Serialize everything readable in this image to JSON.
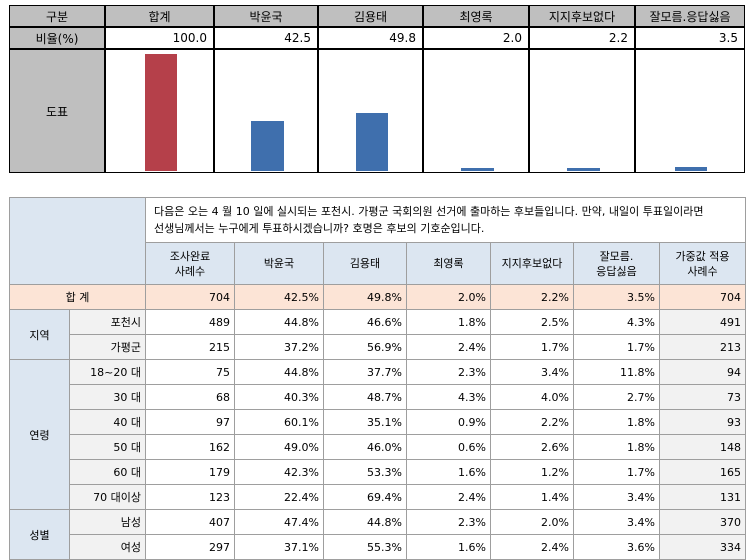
{
  "summary": {
    "corner_label": "구분",
    "row_label": "비율(%)",
    "chart_label": "도표",
    "columns": [
      "합계",
      "박윤국",
      "김용태",
      "최영록",
      "지지후보없다",
      "잘모름.응답싫음"
    ],
    "values": [
      100.0,
      42.5,
      49.8,
      2.0,
      2.2,
      3.5
    ],
    "value_text": [
      "100.0",
      "42.5",
      "49.8",
      "2.0",
      "2.2",
      "3.5"
    ],
    "colors": {
      "total": "#b5404a",
      "candidate": "#3f6fad"
    }
  },
  "chart_data": {
    "type": "bar",
    "categories": [
      "합계",
      "박윤국",
      "김용태",
      "최영록",
      "지지후보없다",
      "잘모름.응답싫음"
    ],
    "values": [
      100.0,
      42.5,
      49.8,
      2.0,
      2.2,
      3.5
    ],
    "ylabel": "비율(%)",
    "ylim": [
      0,
      100
    ]
  },
  "table": {
    "question_line1": "다음은 오는 4 월 10 일에 실시되는 포천시. 가평군 국회의원 선거에 출마하는 후보들입니다. 만약, 내일이 투표일이라면",
    "question_line2": "선생님께서는 누구에게 투표하시겠습니까? 호명은 후보의 기호순입니다.",
    "headers": {
      "sample": [
        "조사완료",
        "사례수"
      ],
      "c1": "박윤국",
      "c2": "김용태",
      "c3": "최영록",
      "c4": "지지후보없다",
      "c5": [
        "잘모름.",
        "응답싫음"
      ],
      "weighted": [
        "가중값 적용",
        "사례수"
      ]
    },
    "total": {
      "label": "합 계",
      "n": "704",
      "c1": "42.5%",
      "c2": "49.8%",
      "c3": "2.0%",
      "c4": "2.2%",
      "c5": "3.5%",
      "w": "704"
    },
    "groups": [
      {
        "name": "지역",
        "rows": [
          {
            "label": "포천시",
            "n": "489",
            "c1": "44.8%",
            "c2": "46.6%",
            "c3": "1.8%",
            "c4": "2.5%",
            "c5": "4.3%",
            "w": "491"
          },
          {
            "label": "가평군",
            "n": "215",
            "c1": "37.2%",
            "c2": "56.9%",
            "c3": "2.4%",
            "c4": "1.7%",
            "c5": "1.7%",
            "w": "213"
          }
        ]
      },
      {
        "name": "연령",
        "rows": [
          {
            "label": "18~20 대",
            "n": "75",
            "c1": "44.8%",
            "c2": "37.7%",
            "c3": "2.3%",
            "c4": "3.4%",
            "c5": "11.8%",
            "w": "94"
          },
          {
            "label": "30 대",
            "n": "68",
            "c1": "40.3%",
            "c2": "48.7%",
            "c3": "4.3%",
            "c4": "4.0%",
            "c5": "2.7%",
            "w": "73"
          },
          {
            "label": "40 대",
            "n": "97",
            "c1": "60.1%",
            "c2": "35.1%",
            "c3": "0.9%",
            "c4": "2.2%",
            "c5": "1.8%",
            "w": "93"
          },
          {
            "label": "50 대",
            "n": "162",
            "c1": "49.0%",
            "c2": "46.0%",
            "c3": "0.6%",
            "c4": "2.6%",
            "c5": "1.8%",
            "w": "148"
          },
          {
            "label": "60 대",
            "n": "179",
            "c1": "42.3%",
            "c2": "53.3%",
            "c3": "1.6%",
            "c4": "1.2%",
            "c5": "1.7%",
            "w": "165"
          },
          {
            "label": "70 대이상",
            "n": "123",
            "c1": "22.4%",
            "c2": "69.4%",
            "c3": "2.4%",
            "c4": "1.4%",
            "c5": "3.4%",
            "w": "131"
          }
        ]
      },
      {
        "name": "성별",
        "rows": [
          {
            "label": "남성",
            "n": "407",
            "c1": "47.4%",
            "c2": "44.8%",
            "c3": "2.3%",
            "c4": "2.0%",
            "c5": "3.4%",
            "w": "370"
          },
          {
            "label": "여성",
            "n": "297",
            "c1": "37.1%",
            "c2": "55.3%",
            "c3": "1.6%",
            "c4": "2.4%",
            "c5": "3.6%",
            "w": "334"
          }
        ]
      }
    ]
  }
}
